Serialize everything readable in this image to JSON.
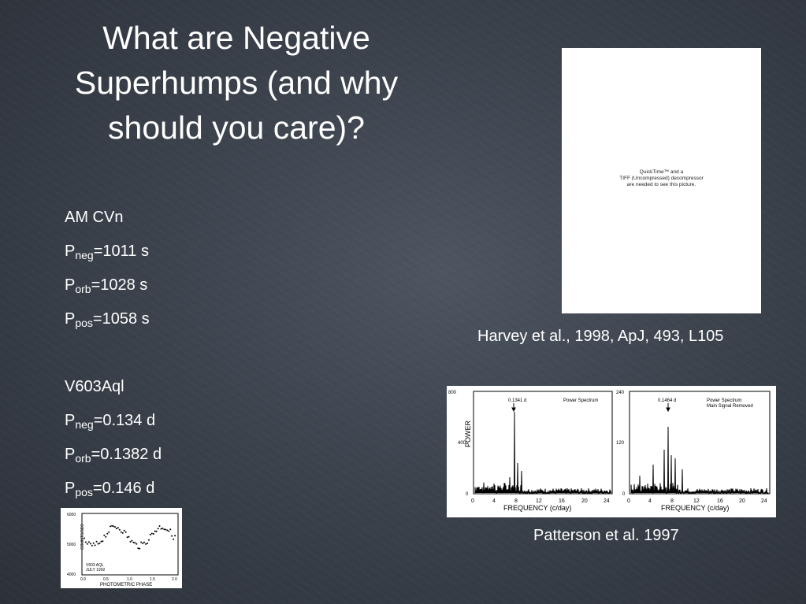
{
  "title_lines": [
    "What are Negative",
    "Superhumps (and why",
    "should you care)?"
  ],
  "objects": [
    {
      "name": "AM CVn",
      "params": [
        {
          "p": "P",
          "sub": "neg",
          "value": "=1011 s"
        },
        {
          "p": "P",
          "sub": "orb",
          "value": "=1028 s"
        },
        {
          "p": "P",
          "sub": "pos",
          "value": "=1058 s"
        }
      ]
    },
    {
      "name": "V603Aql",
      "params": [
        {
          "p": "P",
          "sub": "neg",
          "value": "=0.134 d"
        },
        {
          "p": "P",
          "sub": "orb",
          "value": "=0.1382 d"
        },
        {
          "p": "P",
          "sub": "pos",
          "value": "=0.146 d"
        }
      ]
    }
  ],
  "quicktime_placeholder": {
    "lines": [
      "QuickTime™ and a",
      "TIFF (Uncompressed) decompressor",
      "are needed to see this picture."
    ]
  },
  "citations": {
    "harvey": "Harvey et al., 1998, ApJ, 493, L105",
    "patterson": "Patterson et al. 1997"
  },
  "power_spectrum_figure": {
    "ylabel": "POWER",
    "xlabel": "FREQUENCY  (c/day)",
    "xticks": [
      "0",
      "4",
      "8",
      "12",
      "16",
      "20",
      "24"
    ],
    "left_panel": {
      "title": "Power Spectrum",
      "peak_label": "0.1341 d",
      "yticks": [
        "800",
        "400",
        "0"
      ]
    },
    "right_panel": {
      "title_lines": [
        "Power Spectrum",
        "Main Signal Removed"
      ],
      "peak_label": "0.1464 d",
      "yticks": [
        "240",
        "120",
        "0"
      ]
    }
  },
  "light_curve_figure": {
    "ylabel": "COUNTS/SEC",
    "xlabel": "PHOTOMETRIC  PHASE",
    "yticks": [
      "6000",
      "5000",
      "4000"
    ],
    "xticks": [
      "0.0",
      "0.5",
      "1.0",
      "1.5",
      "2.0"
    ],
    "annotation_lines": [
      "V603 AQL",
      "JULY 1992"
    ]
  }
}
